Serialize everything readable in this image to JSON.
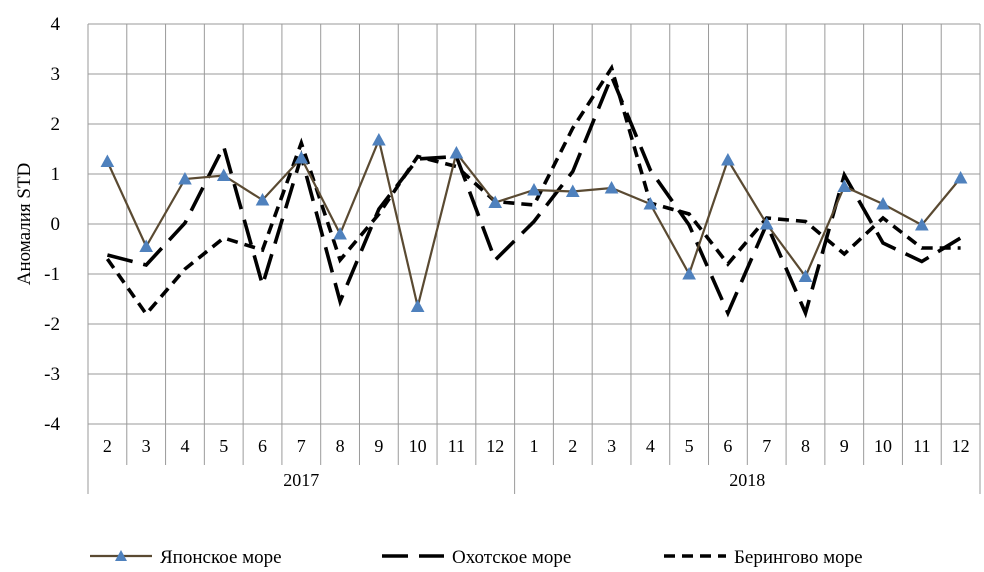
{
  "chart_data": {
    "type": "line",
    "ylabel": "Аномалия STD",
    "ylim": [
      -4,
      4
    ],
    "yticks": [
      "4",
      "3",
      "2",
      "1",
      "0",
      "-1",
      "-2",
      "-3",
      "-4"
    ],
    "categories": [
      "2",
      "3",
      "4",
      "5",
      "6",
      "7",
      "8",
      "9",
      "10",
      "11",
      "12",
      "1",
      "2",
      "3",
      "4",
      "5",
      "6",
      "7",
      "8",
      "9",
      "10",
      "11",
      "12"
    ],
    "groups": [
      {
        "label": "2017",
        "count": 11
      },
      {
        "label": "2018",
        "count": 12
      }
    ],
    "grid": true,
    "legend_position": "bottom",
    "series": [
      {
        "name": "Японское море",
        "style": "solid-triangle",
        "color": "#5a4a32",
        "marker_color": "#4f81bd",
        "values": [
          1.25,
          -0.45,
          0.9,
          0.97,
          0.48,
          1.32,
          -0.2,
          1.68,
          -1.65,
          1.42,
          0.43,
          0.68,
          0.65,
          0.72,
          0.4,
          -1.0,
          1.28,
          0.0,
          -1.05,
          0.75,
          0.4,
          -0.02,
          0.92
        ]
      },
      {
        "name": "Охотское море",
        "style": "long-dash",
        "color": "#000000",
        "values": [
          -0.62,
          -0.82,
          0.02,
          1.55,
          -1.22,
          1.35,
          -1.55,
          0.3,
          1.3,
          1.35,
          -0.72,
          0.05,
          1.05,
          2.95,
          1.08,
          -0.02,
          -1.78,
          0.0,
          -1.78,
          0.98,
          -0.38,
          -0.75,
          -0.28
        ]
      },
      {
        "name": "Берингово море",
        "style": "short-dash",
        "color": "#000000",
        "values": [
          -0.7,
          -1.8,
          -0.9,
          -0.28,
          -0.52,
          1.62,
          -0.72,
          0.2,
          1.35,
          1.15,
          0.45,
          0.38,
          1.92,
          3.12,
          0.42,
          0.2,
          -0.8,
          0.12,
          0.05,
          -0.6,
          0.12,
          -0.48,
          -0.48
        ]
      }
    ]
  }
}
